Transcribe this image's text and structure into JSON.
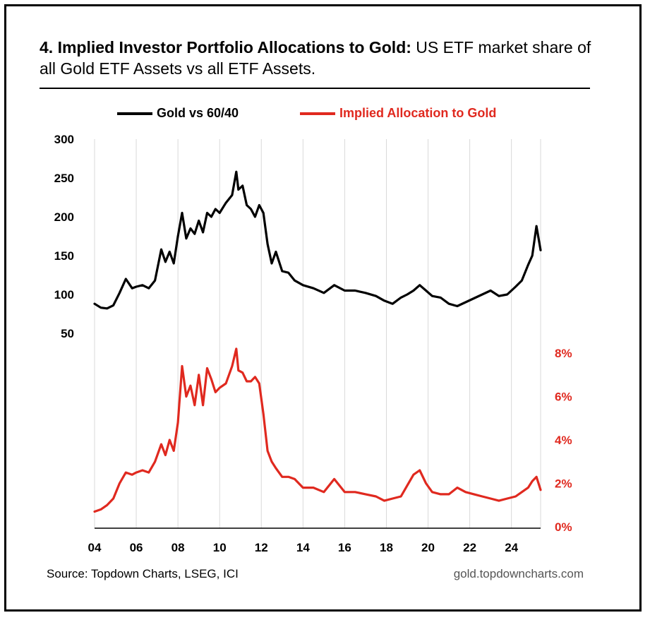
{
  "title_bold": "4. Implied Investor Portfolio Allocations to Gold:",
  "title_rest": " US ETF market share of all Gold ETF Assets vs all ETF Assets.",
  "source": "Source: Topdown Charts, LSEG, ICI",
  "website": "gold.topdowncharts.com",
  "colors": {
    "gold_vs_6040": "#000000",
    "implied_allocation": "#e0291f",
    "grid": "#d9d9d9"
  },
  "chart_data": {
    "type": "line",
    "x_ticks": [
      "04",
      "06",
      "08",
      "10",
      "12",
      "14",
      "16",
      "18",
      "20",
      "22",
      "24"
    ],
    "x_tick_values": [
      2004,
      2006,
      2008,
      2010,
      2012,
      2014,
      2016,
      2018,
      2020,
      2022,
      2024
    ],
    "xlim": [
      2004,
      2025.4
    ],
    "left_axis": {
      "ticks": [
        "300",
        "250",
        "200",
        "150",
        "100",
        "50"
      ],
      "tick_values": [
        300,
        250,
        200,
        150,
        100,
        50
      ],
      "ylim": [
        50,
        300
      ]
    },
    "right_axis": {
      "ticks": [
        "8%",
        "6%",
        "4%",
        "2%",
        "0%"
      ],
      "tick_values": [
        8,
        6,
        4,
        2,
        0
      ],
      "ylim": [
        0,
        8
      ]
    },
    "grid": "vertical",
    "legend_position": "top",
    "series": [
      {
        "name": "Gold vs 60/40",
        "axis": "left",
        "x": [
          2004.0,
          2004.3,
          2004.6,
          2004.9,
          2005.2,
          2005.5,
          2005.8,
          2006.0,
          2006.3,
          2006.6,
          2006.9,
          2007.2,
          2007.4,
          2007.6,
          2007.8,
          2008.0,
          2008.2,
          2008.4,
          2008.6,
          2008.8,
          2009.0,
          2009.2,
          2009.4,
          2009.6,
          2009.8,
          2010.0,
          2010.3,
          2010.6,
          2010.8,
          2010.9,
          2011.1,
          2011.3,
          2011.5,
          2011.7,
          2011.9,
          2012.1,
          2012.3,
          2012.5,
          2012.7,
          2013.0,
          2013.3,
          2013.6,
          2014.0,
          2014.5,
          2015.0,
          2015.5,
          2016.0,
          2016.5,
          2017.0,
          2017.5,
          2017.9,
          2018.3,
          2018.7,
          2019.0,
          2019.3,
          2019.6,
          2019.9,
          2020.2,
          2020.6,
          2021.0,
          2021.4,
          2021.8,
          2022.2,
          2022.6,
          2023.0,
          2023.4,
          2023.8,
          2024.2,
          2024.5,
          2024.8,
          2025.0,
          2025.2,
          2025.4
        ],
        "values": [
          88,
          83,
          82,
          86,
          102,
          120,
          108,
          110,
          112,
          108,
          118,
          158,
          142,
          155,
          140,
          175,
          205,
          172,
          185,
          178,
          195,
          180,
          205,
          200,
          210,
          205,
          218,
          228,
          258,
          235,
          240,
          215,
          210,
          200,
          215,
          205,
          165,
          140,
          155,
          130,
          128,
          118,
          112,
          108,
          102,
          112,
          105,
          105,
          102,
          98,
          92,
          88,
          96,
          100,
          105,
          112,
          105,
          98,
          96,
          88,
          85,
          90,
          95,
          100,
          105,
          98,
          100,
          110,
          118,
          138,
          150,
          188,
          157
        ]
      },
      {
        "name": "Implied Allocation to Gold",
        "axis": "right",
        "x": [
          2004.0,
          2004.3,
          2004.6,
          2004.9,
          2005.2,
          2005.5,
          2005.8,
          2006.0,
          2006.3,
          2006.6,
          2006.9,
          2007.2,
          2007.4,
          2007.6,
          2007.8,
          2008.0,
          2008.2,
          2008.4,
          2008.6,
          2008.8,
          2009.0,
          2009.2,
          2009.4,
          2009.6,
          2009.8,
          2010.0,
          2010.3,
          2010.6,
          2010.8,
          2010.9,
          2011.1,
          2011.3,
          2011.5,
          2011.7,
          2011.9,
          2012.1,
          2012.3,
          2012.5,
          2012.7,
          2013.0,
          2013.3,
          2013.6,
          2014.0,
          2014.5,
          2015.0,
          2015.5,
          2016.0,
          2016.5,
          2017.0,
          2017.5,
          2017.9,
          2018.3,
          2018.7,
          2019.0,
          2019.3,
          2019.6,
          2019.9,
          2020.2,
          2020.6,
          2021.0,
          2021.4,
          2021.8,
          2022.2,
          2022.6,
          2023.0,
          2023.4,
          2023.8,
          2024.2,
          2024.5,
          2024.8,
          2025.0,
          2025.2,
          2025.4
        ],
        "values": [
          0.7,
          0.8,
          1.0,
          1.3,
          2.0,
          2.5,
          2.4,
          2.5,
          2.6,
          2.5,
          3.0,
          3.8,
          3.3,
          4.0,
          3.5,
          4.8,
          7.4,
          6.0,
          6.5,
          5.6,
          7.0,
          5.6,
          7.3,
          6.8,
          6.2,
          6.4,
          6.6,
          7.4,
          8.2,
          7.2,
          7.1,
          6.7,
          6.7,
          6.9,
          6.6,
          5.2,
          3.5,
          3.0,
          2.7,
          2.3,
          2.3,
          2.2,
          1.8,
          1.8,
          1.6,
          2.2,
          1.6,
          1.6,
          1.5,
          1.4,
          1.2,
          1.3,
          1.4,
          1.9,
          2.4,
          2.6,
          2.0,
          1.6,
          1.5,
          1.5,
          1.8,
          1.6,
          1.5,
          1.4,
          1.3,
          1.2,
          1.3,
          1.4,
          1.6,
          1.8,
          2.1,
          2.3,
          1.7
        ]
      }
    ]
  }
}
